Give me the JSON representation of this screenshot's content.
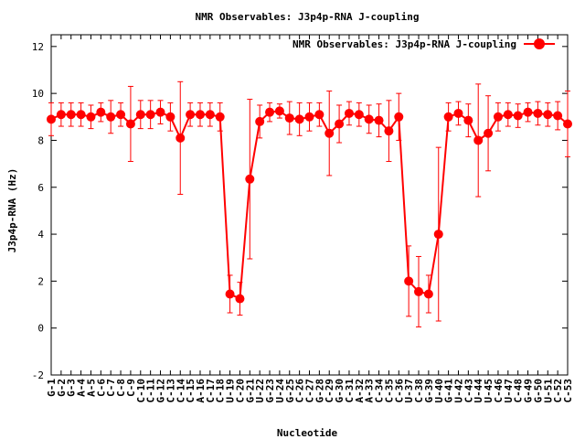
{
  "chart_data": {
    "type": "line",
    "title": "NMR Observables: J3p4p-RNA J-coupling",
    "xlabel": "Nucleotide",
    "ylabel": "J3p4p-RNA (Hz)",
    "ylim": [
      -2,
      12.5
    ],
    "yticks": [
      -2,
      0,
      2,
      4,
      6,
      8,
      10,
      12
    ],
    "grid": false,
    "legend_position": "top-right",
    "color": "#ff0000",
    "categories": [
      "G-1",
      "G-2",
      "G-3",
      "A-4",
      "A-5",
      "C-6",
      "C-7",
      "C-8",
      "C-9",
      "C-10",
      "C-11",
      "G-12",
      "C-13",
      "C-14",
      "C-15",
      "A-16",
      "C-17",
      "C-18",
      "U-19",
      "C-20",
      "G-21",
      "U-22",
      "G-23",
      "U-24",
      "G-25",
      "C-26",
      "C-27",
      "G-28",
      "C-29",
      "G-30",
      "C-31",
      "A-32",
      "A-33",
      "C-34",
      "C-35",
      "C-36",
      "U-37",
      "C-38",
      "G-39",
      "U-40",
      "G-41",
      "U-42",
      "C-43",
      "U-44",
      "U-45",
      "C-46",
      "U-47",
      "C-48",
      "G-49",
      "G-50",
      "U-51",
      "C-52",
      "C-53"
    ],
    "series": [
      {
        "name": "NMR Observables: J3p4p-RNA J-coupling",
        "values": [
          8.9,
          9.1,
          9.1,
          9.1,
          9.0,
          9.2,
          9.0,
          9.1,
          8.7,
          9.1,
          9.1,
          9.2,
          9.0,
          8.1,
          9.1,
          9.1,
          9.1,
          9.0,
          1.45,
          1.25,
          6.35,
          8.8,
          9.2,
          9.25,
          8.95,
          8.9,
          9.0,
          9.1,
          8.3,
          8.7,
          9.15,
          9.1,
          8.9,
          8.85,
          8.4,
          9.0,
          2.0,
          1.55,
          1.45,
          4.0,
          9.0,
          9.15,
          8.85,
          8.0,
          8.3,
          9.0,
          9.1,
          9.05,
          9.2,
          9.15,
          9.1,
          9.05,
          8.7
        ],
        "errors": [
          0.7,
          0.5,
          0.5,
          0.5,
          0.5,
          0.4,
          0.7,
          0.5,
          1.6,
          0.6,
          0.6,
          0.5,
          0.6,
          2.4,
          0.5,
          0.5,
          0.5,
          0.6,
          0.8,
          0.7,
          3.4,
          0.7,
          0.4,
          0.3,
          0.7,
          0.7,
          0.6,
          0.5,
          1.8,
          0.8,
          0.5,
          0.5,
          0.6,
          0.7,
          1.3,
          1.0,
          1.5,
          1.5,
          0.8,
          3.7,
          0.6,
          0.5,
          0.7,
          2.4,
          1.6,
          0.6,
          0.5,
          0.5,
          0.4,
          0.5,
          0.5,
          0.6,
          1.4
        ]
      }
    ]
  }
}
